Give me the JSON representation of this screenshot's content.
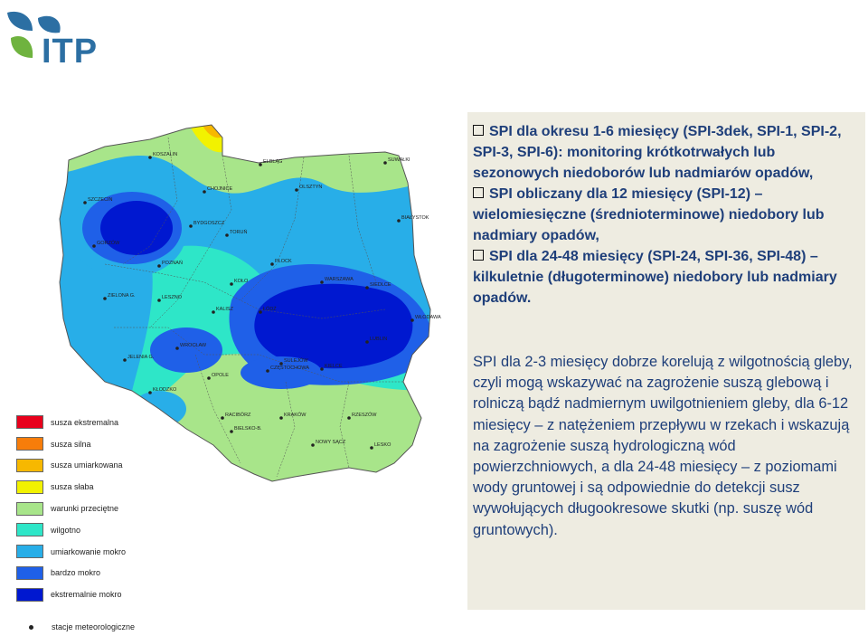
{
  "logo": {
    "text": "ITP",
    "colors": [
      "#2c6fa3",
      "#6fb33f"
    ]
  },
  "map": {
    "cities": [
      "KOSZALIN",
      "SUWAŁKI",
      "ELBLĄG",
      "OLSZTYN",
      "CHOJNICE",
      "SZCZECIN",
      "BYDGOSZCZ",
      "TORUŃ",
      "BIAŁYSTOK",
      "GORZÓW",
      "POZNAŃ",
      "PŁOCK",
      "WARSZAWA",
      "SIEDLCE",
      "ZIELONA G.",
      "KOŁO",
      "LESZNO",
      "KALISZ",
      "ŁÓDŹ",
      "WŁODAWA",
      "LUBLIN",
      "WROCŁAW",
      "JELENIA G.",
      "SULEJÓW",
      "CZĘSTOCHOWA",
      "OPOLE",
      "KIELCE",
      "KŁODZKO",
      "RACIBÓRZ",
      "KRAKÓW",
      "RZESZÓW",
      "BIELSKO-B.",
      "NOWY SĄCZ",
      "LESKO"
    ]
  },
  "legend": {
    "items": [
      {
        "label": "susza ekstremalna",
        "color": "#e8001c"
      },
      {
        "label": "susza silna",
        "color": "#f77d0a"
      },
      {
        "label": "susza umiarkowana",
        "color": "#f7b800"
      },
      {
        "label": "susza słaba",
        "color": "#f2f200"
      },
      {
        "label": "warunki przeciętne",
        "color": "#a8e58a"
      },
      {
        "label": "wilgotno",
        "color": "#2ee6c8"
      },
      {
        "label": "umiarkowanie mokro",
        "color": "#28aee8"
      },
      {
        "label": "bardzo mokro",
        "color": "#1f60e8"
      },
      {
        "label": "ekstremalnie mokro",
        "color": "#0018d0"
      }
    ],
    "station_label": "stacje meteorologiczne"
  },
  "panel": {
    "bullets": [
      "SPI dla okresu 1-6 miesięcy (SPI-3dek, SPI-1, SPI-2, SPI-3, SPI-6): monitoring krótkotrwałych lub sezonowych niedoborów lub nadmiarów opadów,",
      "SPI obliczany dla 12 miesięcy (SPI-12) – wieloмiesięczne (średnioterminowe) niedobory lub nadmiary opadów,",
      "SPI dla 24-48 miesięcy (SPI-24, SPI-36, SPI-48) – kilkuletnie (długoterminowe) niedobory lub nadmiary opadów."
    ],
    "body": "SPI dla 2-3 miesięcy dobrze korelują z wilgotnością gleby, czyli mogą wskazywać na zagrożenie suszą glebową i rolniczą bądź nadmiernym uwilgotnieniem gleby, dla 6-12 miesięcy – z natężeniem przepływu w rzekach i wskazują na zagrożenie suszą hydrologiczną wód powierzchniowych, a dla 24-48 miesięcy – z poziomami wody gruntowej i są odpowiednie do detekcji susz wywołujących długookresowe skutki (np. suszę wód gruntowych)."
  }
}
